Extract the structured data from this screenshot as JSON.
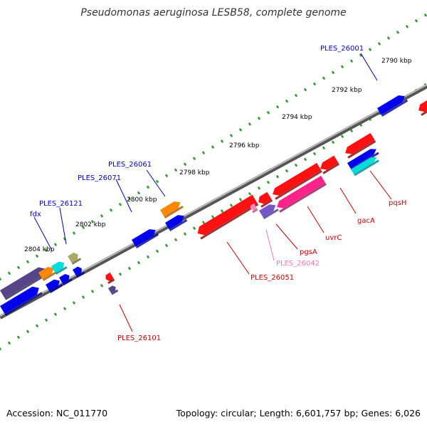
{
  "title": "Pseudomonas aeruginosa LESB58, complete genome",
  "footer": {
    "accession": "Accession: NC_011770",
    "summary": "Topology: circular; Length: 6,601,757 bp; Genes: 6,026"
  },
  "ticks": [
    "2790 kbp",
    "2792 kbp",
    "2794 kbp",
    "2796 kbp",
    "2798 kbp",
    "2800 kbp",
    "2802 kbp",
    "2804 kbp"
  ],
  "colors": {
    "forward_label": "#0000cc",
    "reverse_label": "#cc0000",
    "pseudo_label": "#ff77aa",
    "backbone": "#888888",
    "tick_dot": "#339933"
  },
  "labels": {
    "forward": [
      "PLES_26001",
      "PLES_26061",
      "PLES_26071",
      "PLES_26121",
      "fdx"
    ],
    "reverse": [
      "pqsH",
      "gacA",
      "uvrC",
      "pgsA",
      "PLES_26051",
      "PLES_26101"
    ],
    "pseudo": [
      "PLES_26042"
    ]
  }
}
